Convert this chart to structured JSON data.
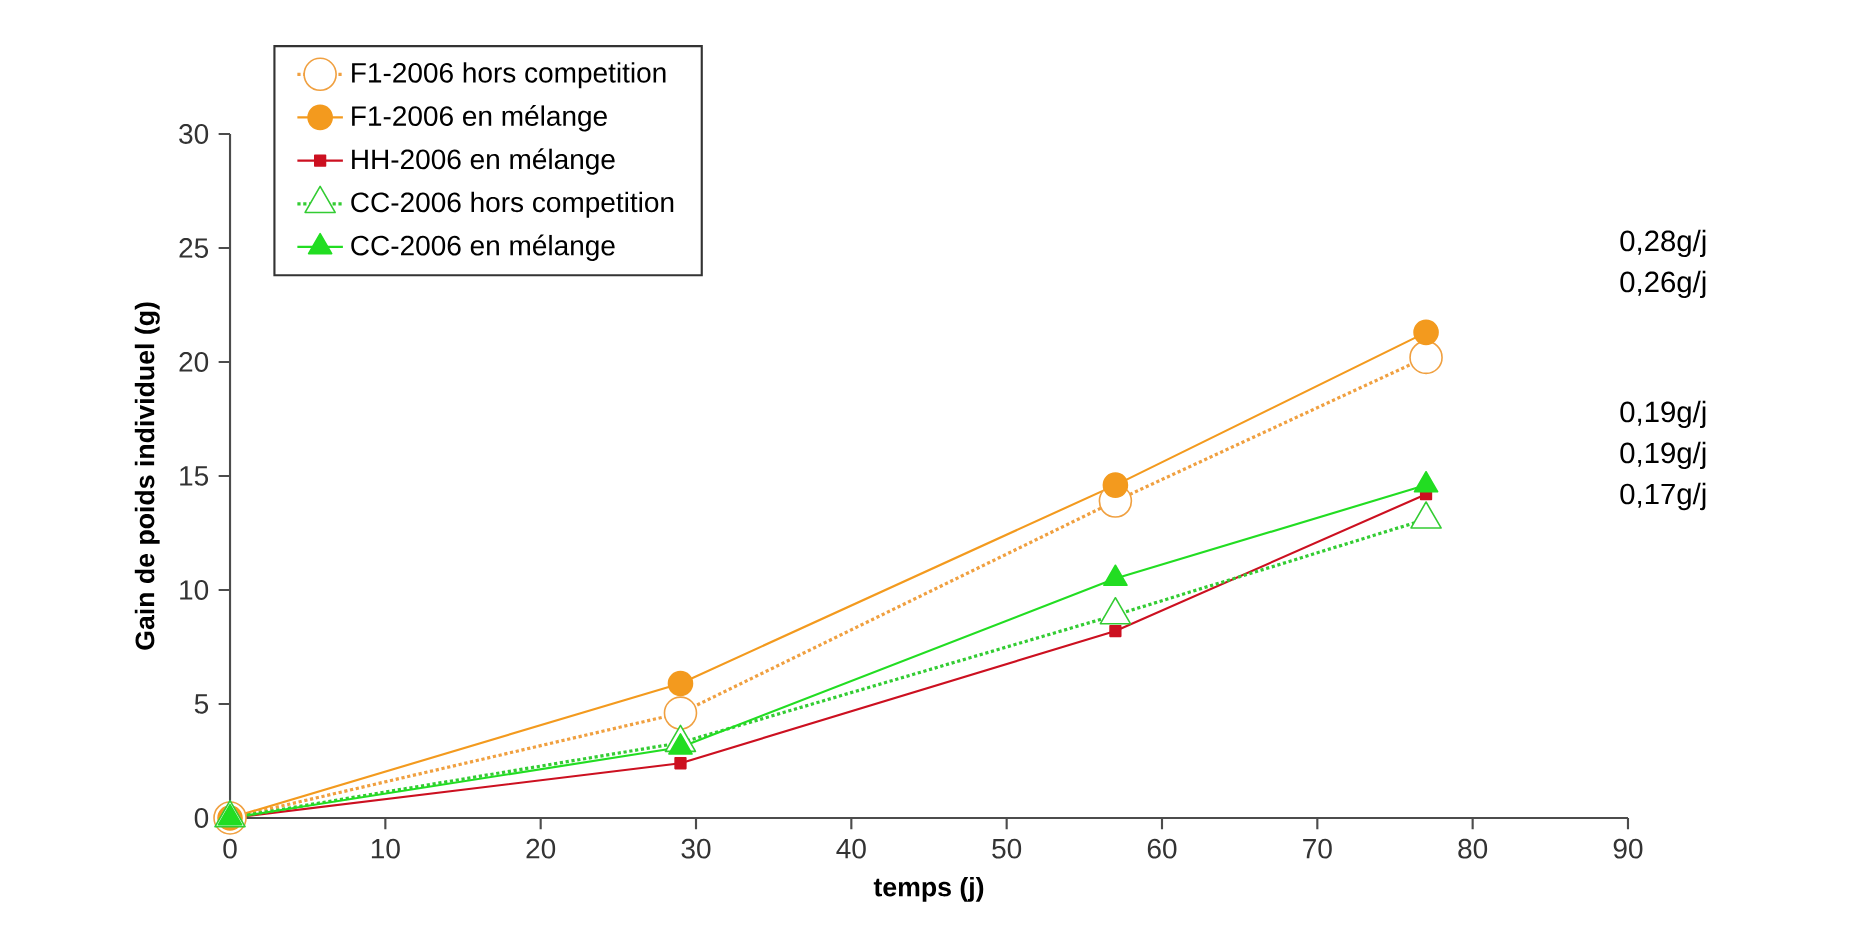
{
  "chart_data": {
    "type": "line",
    "xlabel": "temps (j)",
    "ylabel": "Gain de poids individuel (g)",
    "x": [
      0,
      29,
      57,
      77
    ],
    "xlim": [
      0,
      90
    ],
    "xticks": [
      0,
      10,
      20,
      30,
      40,
      50,
      60,
      70,
      80,
      90
    ],
    "ylim": [
      0,
      30
    ],
    "yticks": [
      0,
      5,
      10,
      15,
      20,
      25,
      30
    ],
    "grid": false,
    "legend": "top left",
    "series": [
      {
        "name": "F1-2006 hors competition",
        "color": "#f0a040",
        "values": [
          0,
          4.6,
          13.9,
          20.2
        ],
        "marker": "circle",
        "line_style": "dotted"
      },
      {
        "name": "F1-2006 en mélange",
        "color": "#f39a1e",
        "values": [
          0,
          5.9,
          14.6,
          21.3
        ],
        "marker": "circle",
        "line_style": "solid"
      },
      {
        "name": "HH-2006 en mélange",
        "color": "#cc1020",
        "values": [
          0,
          2.4,
          8.2,
          14.2
        ],
        "marker": "square",
        "line_style": "solid"
      },
      {
        "name": "CC-2006 hors competition",
        "color": "#33cc33",
        "values": [
          0,
          3.3,
          8.9,
          13.1
        ],
        "marker": "triangle",
        "line_style": "dotted"
      },
      {
        "name": "CC-2006 en mélange",
        "color": "#22dd22",
        "values": [
          0,
          3.1,
          10.5,
          14.6
        ],
        "marker": "triangle",
        "line_style": "solid"
      }
    ],
    "annotations": [
      "0,28g/j",
      "0,26g/j",
      "0,19g/j",
      "0,19g/j",
      "0,17g/j"
    ]
  }
}
